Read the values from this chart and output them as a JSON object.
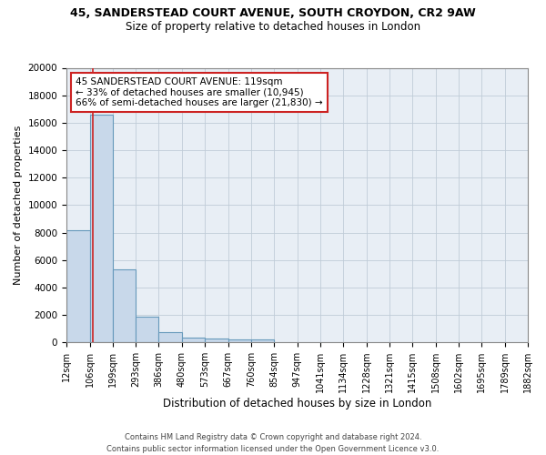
{
  "title_line1": "45, SANDERSTEAD COURT AVENUE, SOUTH CROYDON, CR2 9AW",
  "title_line2": "Size of property relative to detached houses in London",
  "xlabel": "Distribution of detached houses by size in London",
  "ylabel": "Number of detached properties",
  "bin_edges": [
    12,
    106,
    199,
    293,
    386,
    480,
    573,
    667,
    760,
    854,
    947,
    1041,
    1134,
    1228,
    1321,
    1415,
    1508,
    1602,
    1695,
    1789,
    1882
  ],
  "bar_heights": [
    8200,
    16600,
    5300,
    1850,
    750,
    330,
    270,
    220,
    185,
    0,
    0,
    0,
    0,
    0,
    0,
    0,
    0,
    0,
    0,
    0
  ],
  "bar_color": "#c8d8ea",
  "bar_edge_color": "#6699bb",
  "grid_color": "#c0ccd8",
  "background_color": "#e8eef5",
  "property_size": 119,
  "red_line_color": "#cc2222",
  "annotation_text_line1": "45 SANDERSTEAD COURT AVENUE: 119sqm",
  "annotation_text_line2": "← 33% of detached houses are smaller (10,945)",
  "annotation_text_line3": "66% of semi-detached houses are larger (21,830) →",
  "annotation_box_color": "#ffffff",
  "annotation_box_edge": "#cc2222",
  "ylim": [
    0,
    20000
  ],
  "yticks": [
    0,
    2000,
    4000,
    6000,
    8000,
    10000,
    12000,
    14000,
    16000,
    18000,
    20000
  ],
  "footer_line1": "Contains HM Land Registry data © Crown copyright and database right 2024.",
  "footer_line2": "Contains public sector information licensed under the Open Government Licence v3.0."
}
